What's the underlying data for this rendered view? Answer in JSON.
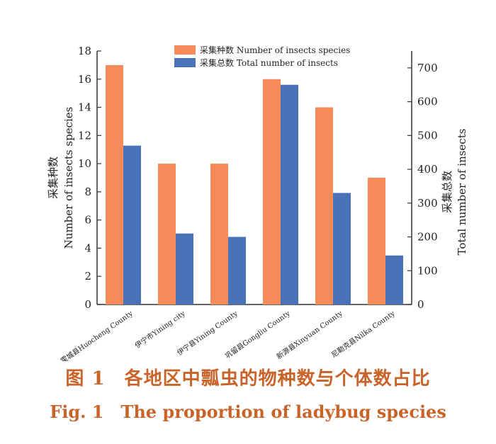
{
  "chart_data": {
    "type": "bar",
    "categories": [
      "霍城县Huocheng County",
      "伊宁市Yining city",
      "伊宁县Yining County",
      "巩留县Gongliu County",
      "新源县Xinyuan County",
      "尼勒克县Nilka County"
    ],
    "series": [
      {
        "name": "采集种数  Number of insects species",
        "axis": "left",
        "values": [
          17,
          10,
          10,
          16,
          14,
          9
        ],
        "color": "#f58b58"
      },
      {
        "name": "采集总数   Total  number of insects",
        "axis": "right",
        "values": [
          470,
          210,
          200,
          650,
          330,
          145
        ],
        "color": "#4a72b8"
      }
    ],
    "left_axis": {
      "label_cn": "采集种数",
      "label_en": "Number of insects species",
      "range": [
        0,
        18
      ],
      "ticks": [
        0,
        2,
        4,
        6,
        8,
        10,
        12,
        14,
        16,
        18
      ]
    },
    "right_axis": {
      "label_cn": "采集总数",
      "label_en": "Total number of insects",
      "range": [
        0,
        750
      ],
      "ticks": [
        0,
        100,
        200,
        300,
        400,
        500,
        600,
        700
      ]
    },
    "legend_position": "top-center",
    "grid": false
  },
  "caption": {
    "cn": "图 1　各地区中瓢虫的物种数与个体数占比",
    "en": "Fig. 1　The proportion of ladybug species"
  }
}
